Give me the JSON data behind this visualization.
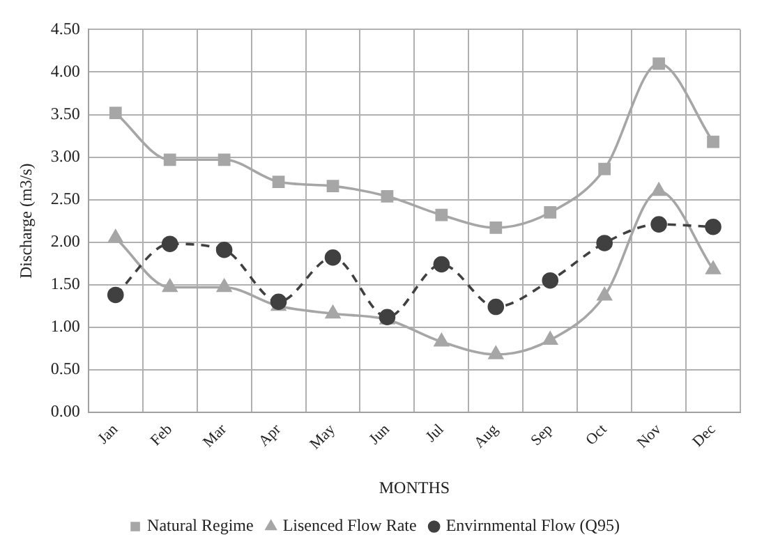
{
  "chart_data": {
    "type": "line",
    "xlabel": "MONTHS",
    "ylabel": "Discharge (m3/s)",
    "categories": [
      "Jan",
      "Feb",
      "Mar",
      "Apr",
      "May",
      "Jun",
      "Jul",
      "Aug",
      "Sep",
      "Oct",
      "Nov",
      "Dec"
    ],
    "series": [
      {
        "name": "Natural Regime",
        "color": "#a6a6a6",
        "marker": "square",
        "line_style": "solid",
        "values": [
          3.52,
          2.97,
          2.97,
          2.71,
          2.66,
          2.54,
          2.32,
          2.17,
          2.35,
          2.86,
          4.1,
          3.18
        ]
      },
      {
        "name": "Lisenced Flow Rate",
        "color": "#a6a6a6",
        "marker": "triangle",
        "line_style": "solid",
        "values": [
          2.05,
          1.47,
          1.47,
          1.25,
          1.16,
          1.09,
          0.83,
          0.68,
          0.85,
          1.37,
          2.6,
          1.68
        ]
      },
      {
        "name": "Envirnmental Flow (Q95)",
        "color": "#404040",
        "marker": "circle",
        "line_style": "dashed",
        "values": [
          1.38,
          1.98,
          1.91,
          1.3,
          1.82,
          1.12,
          1.74,
          1.24,
          1.55,
          1.99,
          2.21,
          2.18
        ]
      }
    ],
    "ylim": [
      0,
      4.5
    ],
    "yticks": [
      {
        "value": 0,
        "label": "0.00"
      },
      {
        "value": 0.5,
        "label": "0.50"
      },
      {
        "value": 1,
        "label": "1.00"
      },
      {
        "value": 1.5,
        "label": "1.50"
      },
      {
        "value": 2,
        "label": "2.00"
      },
      {
        "value": 2.5,
        "label": "2.50"
      },
      {
        "value": 3,
        "label": "3.00"
      },
      {
        "value": 3.5,
        "label": "3.50"
      },
      {
        "value": 4,
        "label": "4.00"
      },
      {
        "value": 4.5,
        "label": "4.50"
      }
    ],
    "grid": true,
    "legend": "bottom"
  }
}
